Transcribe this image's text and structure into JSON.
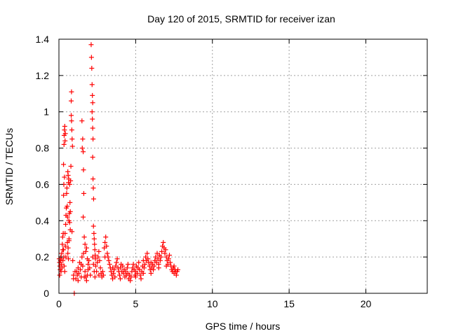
{
  "chart_data": {
    "type": "scatter",
    "title": "Day 120 of 2015, SRMTID for receiver izan",
    "xlabel": "GPS time / hours",
    "ylabel": "SRMTID / TECUs",
    "xlim": [
      0,
      24
    ],
    "ylim": [
      0,
      1.4
    ],
    "xticks": [
      0,
      5,
      10,
      15,
      20
    ],
    "xtick_labels": [
      "0",
      "5",
      "10",
      "15",
      "20"
    ],
    "yticks": [
      0,
      0.2,
      0.4,
      0.6,
      0.8,
      1.0,
      1.2,
      1.4
    ],
    "ytick_labels": [
      "0",
      "0.2",
      "0.4",
      "0.6",
      "0.8",
      "1",
      "1.2",
      "1.4"
    ],
    "grid": true,
    "legend": "none",
    "marker": "+",
    "colors": {
      "series": "#ff0000",
      "grid": "#a0a0a0",
      "axes": "#000000"
    },
    "series": [
      {
        "name": "SRMTID",
        "points": [
          [
            0.02,
            0.19
          ],
          [
            0.04,
            0.17
          ],
          [
            0.06,
            0.15
          ],
          [
            0.08,
            0.13
          ],
          [
            0.1,
            0.18
          ],
          [
            0.12,
            0.2
          ],
          [
            0.14,
            0.12
          ],
          [
            0.16,
            0.16
          ],
          [
            0.18,
            0.22
          ],
          [
            0.2,
            0.14
          ],
          [
            0.22,
            0.27
          ],
          [
            0.24,
            0.31
          ],
          [
            0.26,
            0.18
          ],
          [
            0.28,
            0.33
          ],
          [
            0.3,
            0.24
          ],
          [
            0.32,
            0.2
          ],
          [
            0.34,
            0.15
          ],
          [
            0.3,
            0.54
          ],
          [
            0.32,
            0.6
          ],
          [
            0.3,
            0.71
          ],
          [
            0.33,
            0.82
          ],
          [
            0.34,
            0.87
          ],
          [
            0.36,
            0.9
          ],
          [
            0.38,
            0.92
          ],
          [
            0.4,
            0.84
          ],
          [
            0.42,
            0.88
          ],
          [
            0.36,
            0.64
          ],
          [
            0.38,
            0.12
          ],
          [
            0.4,
            0.33
          ],
          [
            0.42,
            0.26
          ],
          [
            0.44,
            0.38
          ],
          [
            0.46,
            0.43
          ],
          [
            0.48,
            0.47
          ],
          [
            0.5,
            0.55
          ],
          [
            0.52,
            0.58
          ],
          [
            0.54,
            0.48
          ],
          [
            0.56,
            0.42
          ],
          [
            0.58,
            0.67
          ],
          [
            0.6,
            0.65
          ],
          [
            0.62,
            0.61
          ],
          [
            0.64,
            0.63
          ],
          [
            0.66,
            0.29
          ],
          [
            0.68,
            0.44
          ],
          [
            0.7,
            0.39
          ],
          [
            0.72,
            0.5
          ],
          [
            0.74,
            0.35
          ],
          [
            0.66,
            0.3
          ],
          [
            0.62,
            0.19
          ],
          [
            0.6,
            0.25
          ],
          [
            0.58,
            0.22
          ],
          [
            0.8,
            0.98
          ],
          [
            0.82,
            0.95
          ],
          [
            0.84,
            0.9
          ],
          [
            0.86,
            0.85
          ],
          [
            0.88,
            0.81
          ],
          [
            0.8,
            1.06
          ],
          [
            0.82,
            1.11
          ],
          [
            0.78,
            0.7
          ],
          [
            0.76,
            0.62
          ],
          [
            0.74,
            0.45
          ],
          [
            0.85,
            0.34
          ],
          [
            0.9,
            0.18
          ],
          [
            0.95,
            0.1
          ],
          [
            1.0,
            0.0
          ],
          [
            1.1,
            0.08
          ],
          [
            1.15,
            0.12
          ],
          [
            1.2,
            0.1
          ],
          [
            1.25,
            0.14
          ],
          [
            1.3,
            0.11
          ],
          [
            1.35,
            0.17
          ],
          [
            1.4,
            0.13
          ],
          [
            1.45,
            0.09
          ],
          [
            1.5,
            0.2
          ],
          [
            1.55,
            0.15
          ],
          [
            1.6,
            0.22
          ],
          [
            1.5,
            0.95
          ],
          [
            1.55,
            0.85
          ],
          [
            1.52,
            0.8
          ],
          [
            1.58,
            0.78
          ],
          [
            1.6,
            0.68
          ],
          [
            1.62,
            0.55
          ],
          [
            1.58,
            0.42
          ],
          [
            1.65,
            0.31
          ],
          [
            1.7,
            0.27
          ],
          [
            1.75,
            0.23
          ],
          [
            1.8,
            0.25
          ],
          [
            1.85,
            0.19
          ],
          [
            1.9,
            0.16
          ],
          [
            1.7,
            0.12
          ],
          [
            1.75,
            0.09
          ],
          [
            1.8,
            0.07
          ],
          [
            1.85,
            0.1
          ],
          [
            1.9,
            0.13
          ],
          [
            1.95,
            0.18
          ],
          [
            2.0,
            0.14
          ],
          [
            2.1,
            1.37
          ],
          [
            2.12,
            1.3
          ],
          [
            2.14,
            1.24
          ],
          [
            2.16,
            1.15
          ],
          [
            2.18,
            1.09
          ],
          [
            2.2,
            1.05
          ],
          [
            2.16,
            1.0
          ],
          [
            2.18,
            0.96
          ],
          [
            2.2,
            0.91
          ],
          [
            2.22,
            0.85
          ],
          [
            2.2,
            0.75
          ],
          [
            2.22,
            0.63
          ],
          [
            2.24,
            0.58
          ],
          [
            2.26,
            0.52
          ],
          [
            2.25,
            0.37
          ],
          [
            2.28,
            0.33
          ],
          [
            2.3,
            0.3
          ],
          [
            2.32,
            0.27
          ],
          [
            2.34,
            0.24
          ],
          [
            2.36,
            0.21
          ],
          [
            2.38,
            0.19
          ],
          [
            2.4,
            0.15
          ],
          [
            2.2,
            0.2
          ],
          [
            2.25,
            0.16
          ],
          [
            2.3,
            0.12
          ],
          [
            2.35,
            0.09
          ],
          [
            2.45,
            0.12
          ],
          [
            2.5,
            0.17
          ],
          [
            2.55,
            0.2
          ],
          [
            2.6,
            0.23
          ],
          [
            2.65,
            0.18
          ],
          [
            2.7,
            0.14
          ],
          [
            2.75,
            0.11
          ],
          [
            2.8,
            0.09
          ],
          [
            2.85,
            0.12
          ],
          [
            2.9,
            0.1
          ],
          [
            2.95,
            0.25
          ],
          [
            3.0,
            0.28
          ],
          [
            3.05,
            0.31
          ],
          [
            3.1,
            0.26
          ],
          [
            3.15,
            0.22
          ],
          [
            3.2,
            0.2
          ],
          [
            3.25,
            0.18
          ],
          [
            3.3,
            0.16
          ],
          [
            3.35,
            0.14
          ],
          [
            3.4,
            0.12
          ],
          [
            3.45,
            0.1
          ],
          [
            3.5,
            0.08
          ],
          [
            3.55,
            0.11
          ],
          [
            3.6,
            0.13
          ],
          [
            3.65,
            0.09
          ],
          [
            3.7,
            0.15
          ],
          [
            3.75,
            0.17
          ],
          [
            3.8,
            0.19
          ],
          [
            3.85,
            0.14
          ],
          [
            3.9,
            0.12
          ],
          [
            3.95,
            0.1
          ],
          [
            4.0,
            0.14
          ],
          [
            4.05,
            0.16
          ],
          [
            4.1,
            0.12
          ],
          [
            4.15,
            0.15
          ],
          [
            4.2,
            0.11
          ],
          [
            4.25,
            0.13
          ],
          [
            4.3,
            0.09
          ],
          [
            4.35,
            0.12
          ],
          [
            4.4,
            0.1
          ],
          [
            4.45,
            0.14
          ],
          [
            4.5,
            0.11
          ],
          [
            4.55,
            0.08
          ],
          [
            4.6,
            0.1
          ],
          [
            4.65,
            0.07
          ],
          [
            4.7,
            0.09
          ],
          [
            4.75,
            0.12
          ],
          [
            4.8,
            0.14
          ],
          [
            4.85,
            0.16
          ],
          [
            4.9,
            0.13
          ],
          [
            4.95,
            0.1
          ],
          [
            5.0,
            0.12
          ],
          [
            5.05,
            0.15
          ],
          [
            5.1,
            0.11
          ],
          [
            5.15,
            0.14
          ],
          [
            5.2,
            0.17
          ],
          [
            5.25,
            0.13
          ],
          [
            5.3,
            0.1
          ],
          [
            5.35,
            0.08
          ],
          [
            5.4,
            0.12
          ],
          [
            5.45,
            0.15
          ],
          [
            5.5,
            0.18
          ],
          [
            5.55,
            0.14
          ],
          [
            5.6,
            0.16
          ],
          [
            5.65,
            0.2
          ],
          [
            5.7,
            0.18
          ],
          [
            5.75,
            0.22
          ],
          [
            5.8,
            0.19
          ],
          [
            5.85,
            0.17
          ],
          [
            5.9,
            0.15
          ],
          [
            5.95,
            0.13
          ],
          [
            6.0,
            0.11
          ],
          [
            6.05,
            0.14
          ],
          [
            6.1,
            0.16
          ],
          [
            6.15,
            0.13
          ],
          [
            6.2,
            0.15
          ],
          [
            6.25,
            0.18
          ],
          [
            6.3,
            0.2
          ],
          [
            6.35,
            0.17
          ],
          [
            6.4,
            0.22
          ],
          [
            6.45,
            0.19
          ],
          [
            6.5,
            0.16
          ],
          [
            6.55,
            0.21
          ],
          [
            6.6,
            0.18
          ],
          [
            6.65,
            0.2
          ],
          [
            6.7,
            0.23
          ],
          [
            6.75,
            0.26
          ],
          [
            6.8,
            0.28
          ],
          [
            6.85,
            0.25
          ],
          [
            6.9,
            0.22
          ],
          [
            6.95,
            0.24
          ],
          [
            7.0,
            0.2
          ],
          [
            7.05,
            0.18
          ],
          [
            7.1,
            0.16
          ],
          [
            7.15,
            0.19
          ],
          [
            7.2,
            0.21
          ],
          [
            7.25,
            0.17
          ],
          [
            7.3,
            0.15
          ],
          [
            7.35,
            0.13
          ],
          [
            7.4,
            0.12
          ],
          [
            7.45,
            0.14
          ],
          [
            7.5,
            0.11
          ],
          [
            7.55,
            0.13
          ],
          [
            7.6,
            0.12
          ],
          [
            7.65,
            0.1
          ],
          [
            7.7,
            0.12
          ],
          [
            7.75,
            0.13
          ],
          [
            0.05,
            0.1
          ],
          [
            0.15,
            0.19
          ],
          [
            0.25,
            0.24
          ],
          [
            0.45,
            0.2
          ],
          [
            0.55,
            0.28
          ],
          [
            0.65,
            0.4
          ],
          [
            0.7,
            0.6
          ],
          [
            0.95,
            0.08
          ],
          [
            1.05,
            0.12
          ],
          [
            1.25,
            0.07
          ],
          [
            1.45,
            0.16
          ],
          [
            1.65,
            0.09
          ],
          [
            2.05,
            0.1
          ],
          [
            2.6,
            0.1
          ],
          [
            3.0,
            0.2
          ],
          [
            3.5,
            0.14
          ],
          [
            4.0,
            0.08
          ],
          [
            4.5,
            0.16
          ],
          [
            5.0,
            0.09
          ],
          [
            5.5,
            0.11
          ],
          [
            6.0,
            0.17
          ],
          [
            6.5,
            0.14
          ],
          [
            7.0,
            0.15
          ],
          [
            7.5,
            0.15
          ]
        ]
      }
    ]
  }
}
